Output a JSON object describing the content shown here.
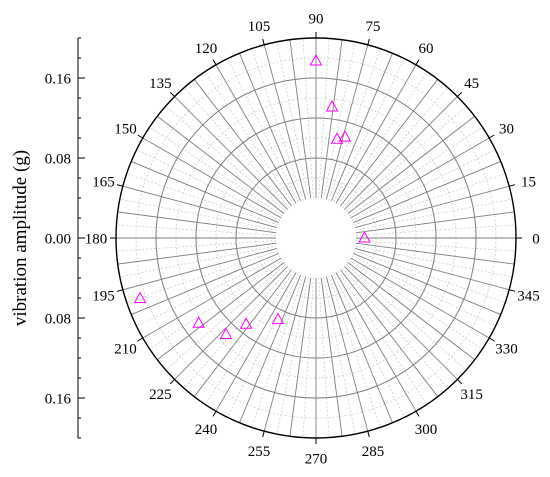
{
  "chart_data": {
    "type": "scatter",
    "projection": "polar",
    "ylabel": "vibration amplitude (g)",
    "radial_axis": {
      "inner_radius": 0.04,
      "range": [
        0.04,
        0.2
      ],
      "tick_values": [
        0.16,
        0.08,
        0.0,
        0.08,
        0.16
      ],
      "tick_labels": [
        "0.16",
        "0.08",
        "0.00",
        "0.08",
        "0.16"
      ],
      "ring_values": [
        0.08,
        0.12,
        0.16,
        0.2
      ]
    },
    "angular_axis": {
      "unit": "degrees",
      "direction": "counterclockwise",
      "zero_at": "right",
      "tick_values": [
        0,
        15,
        30,
        45,
        60,
        75,
        90,
        105,
        120,
        135,
        150,
        165,
        180,
        195,
        210,
        225,
        240,
        255,
        270,
        285,
        300,
        315,
        330,
        345
      ],
      "tick_labels": [
        "0",
        "15",
        "30",
        "45",
        "60",
        "75",
        "90",
        "105",
        "120",
        "135",
        "150",
        "165",
        "180",
        "195",
        "210",
        "225",
        "240",
        "255",
        "270",
        "285",
        "300",
        "315",
        "330",
        "345"
      ],
      "spoke_step": 7.5,
      "minor_step": 3.75
    },
    "series": [
      {
        "marker": "open-triangle",
        "color": "#ff00ff",
        "points": [
          {
            "angle": 90,
            "r": 0.177
          },
          {
            "angle": 83,
            "r": 0.132
          },
          {
            "angle": 78,
            "r": 0.101
          },
          {
            "angle": 74,
            "r": 0.105
          },
          {
            "angle": 0,
            "r": 0.0485
          },
          {
            "angle": 245,
            "r": 0.09
          },
          {
            "angle": 231,
            "r": 0.111
          },
          {
            "angle": 227,
            "r": 0.132
          },
          {
            "angle": 216,
            "r": 0.145
          },
          {
            "angle": 199,
            "r": 0.186
          }
        ]
      }
    ],
    "grid": true,
    "legend": "none"
  }
}
